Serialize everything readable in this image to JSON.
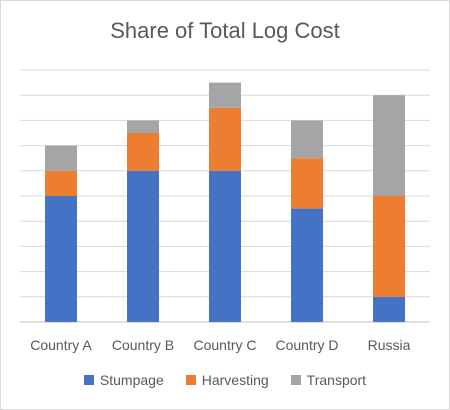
{
  "chart_data": {
    "type": "bar",
    "stacked": true,
    "title": "Share of Total Log Cost",
    "xlabel": "",
    "ylabel": "",
    "categories": [
      "Country A",
      "Country B",
      "Country C",
      "Country D",
      "Russia"
    ],
    "series": [
      {
        "name": "Stumpage",
        "color": "#4472c4",
        "values": [
          5,
          6,
          6,
          4.5,
          1
        ]
      },
      {
        "name": "Harvesting",
        "color": "#ed7d31",
        "values": [
          1,
          1.5,
          2.5,
          2,
          4
        ]
      },
      {
        "name": "Transport",
        "color": "#a5a5a5",
        "values": [
          1,
          0.5,
          1,
          1.5,
          4
        ]
      }
    ],
    "ylim": [
      0,
      10
    ],
    "grid": true,
    "y_tick_labels_shown": false,
    "legend": "bottom"
  }
}
